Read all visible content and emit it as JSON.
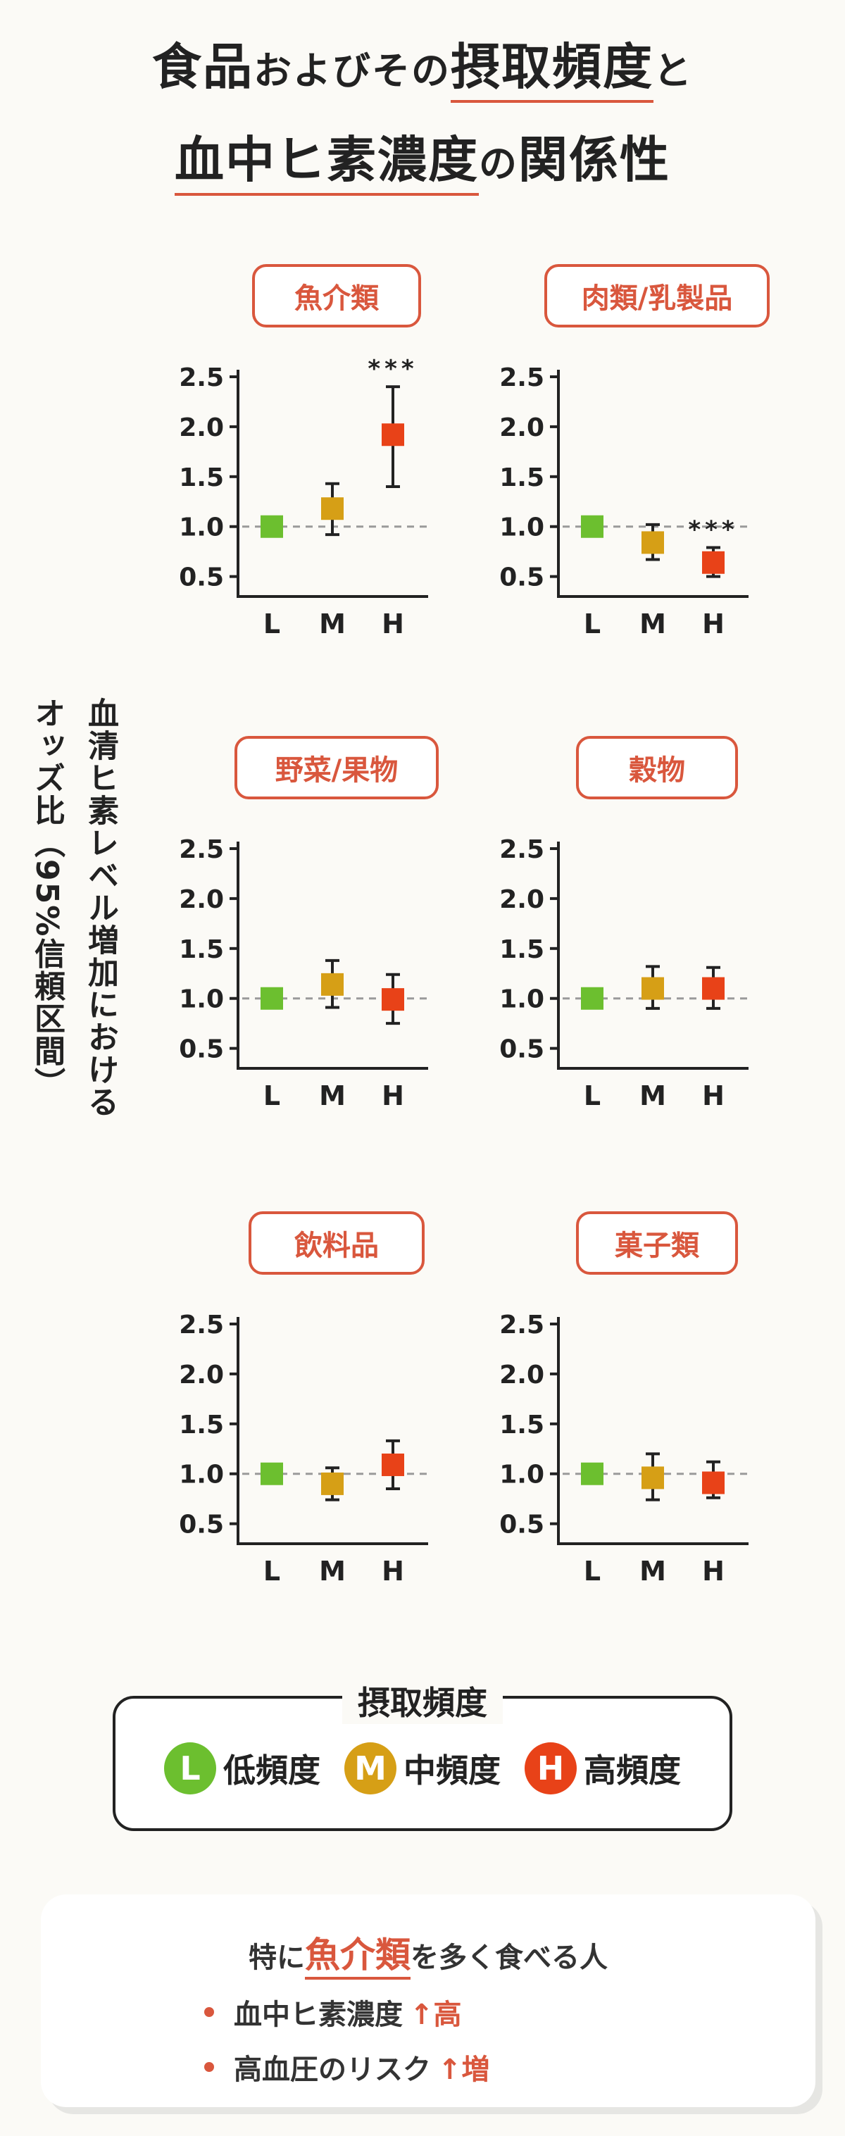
{
  "title": {
    "line1": [
      {
        "text": "食品",
        "size": "big",
        "ul": false
      },
      {
        "text": "およびその",
        "size": "small",
        "ul": false
      },
      {
        "text": "摂取頻度",
        "size": "big",
        "ul": true
      },
      {
        "text": "と",
        "size": "small",
        "ul": false
      }
    ],
    "line2": [
      {
        "text": "血中ヒ素濃度",
        "size": "big",
        "ul": true
      },
      {
        "text": "の",
        "size": "small",
        "ul": false
      },
      {
        "text": "関係性",
        "size": "big",
        "ul": false
      }
    ]
  },
  "ylabel": {
    "line1": "血清ヒ素レベル増加における",
    "line2": "オッズ比（95%信頼区間）"
  },
  "colors": {
    "L": "#6cbf2f",
    "M": "#d69f16",
    "H": "#e84218",
    "accent": "#d9573d",
    "refline": "#9a9a9a"
  },
  "chart_data": [
    {
      "type": "scatter",
      "title": "魚介類",
      "categories": [
        "L",
        "M",
        "H"
      ],
      "ylim": [
        0.3,
        2.5
      ],
      "yticks": [
        "2.5",
        "2.0",
        "1.5",
        "1.0",
        "0.5"
      ],
      "reference_line": 1.0,
      "points": [
        {
          "category": "L",
          "value": 1.0
        },
        {
          "category": "M",
          "value": 1.18,
          "lower": 0.92,
          "upper": 1.43
        },
        {
          "category": "H",
          "value": 1.92,
          "lower": 1.4,
          "upper": 2.4,
          "annotation": "***"
        }
      ]
    },
    {
      "type": "scatter",
      "title": "肉類/乳製品",
      "categories": [
        "L",
        "M",
        "H"
      ],
      "ylim": [
        0.3,
        2.5
      ],
      "yticks": [
        "2.5",
        "2.0",
        "1.5",
        "1.0",
        "0.5"
      ],
      "reference_line": 1.0,
      "points": [
        {
          "category": "L",
          "value": 1.0
        },
        {
          "category": "M",
          "value": 0.84,
          "lower": 0.67,
          "upper": 1.02
        },
        {
          "category": "H",
          "value": 0.64,
          "lower": 0.5,
          "upper": 0.79,
          "annotation": "***"
        }
      ]
    },
    {
      "type": "scatter",
      "title": "野菜/果物",
      "categories": [
        "L",
        "M",
        "H"
      ],
      "ylim": [
        0.3,
        2.5
      ],
      "yticks": [
        "2.5",
        "2.0",
        "1.5",
        "1.0",
        "0.5"
      ],
      "reference_line": 1.0,
      "points": [
        {
          "category": "L",
          "value": 1.0
        },
        {
          "category": "M",
          "value": 1.14,
          "lower": 0.91,
          "upper": 1.38
        },
        {
          "category": "H",
          "value": 0.99,
          "lower": 0.75,
          "upper": 1.24
        }
      ]
    },
    {
      "type": "scatter",
      "title": "穀物",
      "categories": [
        "L",
        "M",
        "H"
      ],
      "ylim": [
        0.3,
        2.5
      ],
      "yticks": [
        "2.5",
        "2.0",
        "1.5",
        "1.0",
        "0.5"
      ],
      "reference_line": 1.0,
      "points": [
        {
          "category": "L",
          "value": 1.0
        },
        {
          "category": "M",
          "value": 1.1,
          "lower": 0.9,
          "upper": 1.32
        },
        {
          "category": "H",
          "value": 1.1,
          "lower": 0.9,
          "upper": 1.31
        }
      ]
    },
    {
      "type": "scatter",
      "title": "飲料品",
      "categories": [
        "L",
        "M",
        "H"
      ],
      "ylim": [
        0.3,
        2.5
      ],
      "yticks": [
        "2.5",
        "2.0",
        "1.5",
        "1.0",
        "0.5"
      ],
      "reference_line": 1.0,
      "points": [
        {
          "category": "L",
          "value": 1.0
        },
        {
          "category": "M",
          "value": 0.9,
          "lower": 0.74,
          "upper": 1.06
        },
        {
          "category": "H",
          "value": 1.09,
          "lower": 0.85,
          "upper": 1.33
        }
      ]
    },
    {
      "type": "scatter",
      "title": "菓子類",
      "categories": [
        "L",
        "M",
        "H"
      ],
      "ylim": [
        0.3,
        2.5
      ],
      "yticks": [
        "2.5",
        "2.0",
        "1.5",
        "1.0",
        "0.5"
      ],
      "reference_line": 1.0,
      "points": [
        {
          "category": "L",
          "value": 1.0
        },
        {
          "category": "M",
          "value": 0.96,
          "lower": 0.74,
          "upper": 1.2
        },
        {
          "category": "H",
          "value": 0.91,
          "lower": 0.76,
          "upper": 1.12
        }
      ]
    }
  ],
  "legend": {
    "title": "摂取頻度",
    "items": [
      {
        "key": "L",
        "label": "低頻度",
        "color": "#6cbf2f"
      },
      {
        "key": "M",
        "label": "中頻度",
        "color": "#d69f16"
      },
      {
        "key": "H",
        "label": "高頻度",
        "color": "#e84218"
      }
    ]
  },
  "note": {
    "prefix": "特に",
    "highlight": "魚介類",
    "suffix": "を多く食べる人",
    "items": [
      {
        "text": "血中ヒ素濃度",
        "accent": "↑高"
      },
      {
        "text": "高血圧のリスク",
        "accent": "↑増"
      }
    ]
  }
}
